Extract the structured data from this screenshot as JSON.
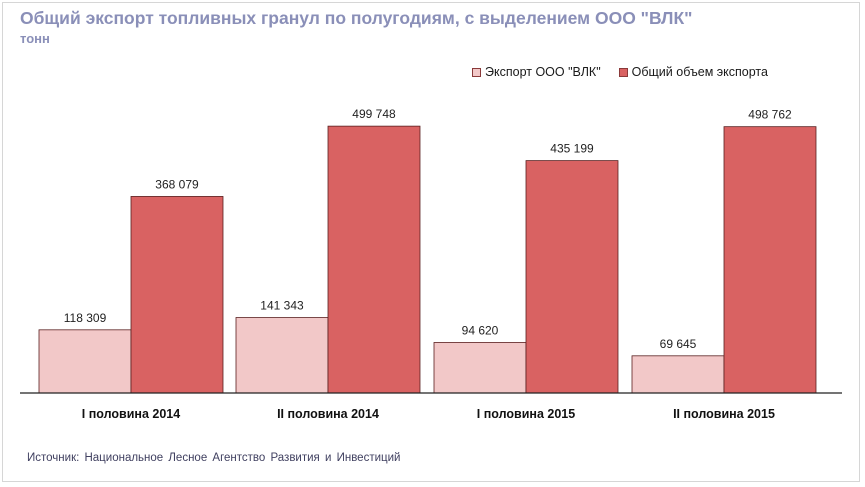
{
  "title": "Общий экспорт топливных гранул по полугодиям, с выделением ООО \"ВЛК\"",
  "subtitle": "тонн",
  "source": "Источник: Национальное Лесное Агентство Развития и Инвестиций",
  "colors": {
    "vlk": "#f2c8c8",
    "total": "#d96262",
    "bar_stroke": "#5a2020",
    "baseline": "#222222"
  },
  "legend": [
    {
      "label": "Экспорт ООО \"ВЛК\"",
      "color": "#f2c8c8"
    },
    {
      "label": "Общий объем экспорта",
      "color": "#d96262"
    }
  ],
  "chart_data": {
    "type": "bar",
    "title": "Общий экспорт топливных гранул по полугодиям, с выделением ООО \"ВЛК\"",
    "ylabel": "тонн",
    "xlabel": "",
    "categories": [
      "I половина 2014",
      "II половина 2014",
      "I половина 2015",
      "II половина 2015"
    ],
    "series": [
      {
        "name": "Экспорт ООО \"ВЛК\"",
        "values": [
          118309,
          141343,
          94620,
          69645
        ],
        "labels": [
          "118 309",
          "141 343",
          "94 620",
          "69 645"
        ]
      },
      {
        "name": "Общий объем экспорта",
        "values": [
          368079,
          499748,
          435199,
          498762
        ],
        "labels": [
          "368 079",
          "499 748",
          "435 199",
          "498 762"
        ]
      }
    ],
    "ylim": [
      0,
      500000
    ],
    "grid": false,
    "legend_position": "top-right"
  }
}
